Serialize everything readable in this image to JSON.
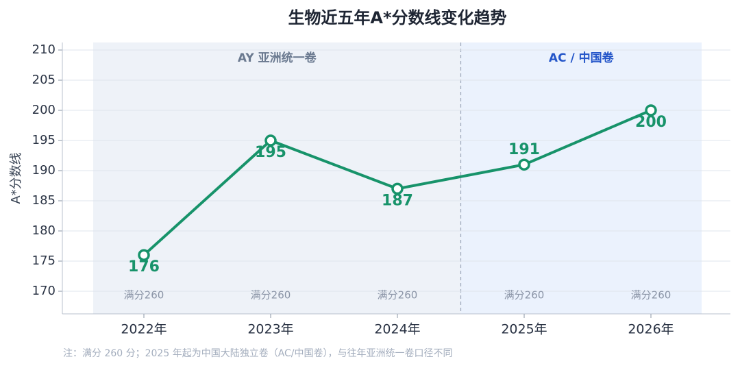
{
  "chart_data": {
    "type": "line",
    "title": "生物近五年A*分数线变化趋势",
    "y_label": "A*分数线",
    "categories": [
      "2022年",
      "2023年",
      "2024年",
      "2025年",
      "2026年"
    ],
    "series": [
      {
        "name": "A*分数线",
        "color": "#17936a",
        "values": [
          176,
          195,
          187,
          191,
          200
        ]
      }
    ],
    "label_positions": [
      "below",
      "below",
      "below",
      "above",
      "below"
    ],
    "point_notes": [
      "满分260",
      "满分260",
      "满分260",
      "满分260",
      "满分260"
    ],
    "regions": [
      {
        "label": "AY 亚洲统一卷",
        "span": 3,
        "color": "#eef2f8",
        "label_color": "#6b7a90"
      },
      {
        "label": "AC / 中国卷",
        "span": 2,
        "color": "#ebf2fd",
        "label_color": "#2456c9"
      }
    ],
    "ylim": [
      166.25,
      211.25
    ],
    "yticks": [
      170,
      175,
      180,
      185,
      190,
      195,
      200,
      205,
      210
    ],
    "grid": true,
    "footnote": "注：满分 260 分；2025 年起为中国大陆独立卷（AC/中国卷），与往年亚洲统一卷口径不同"
  }
}
